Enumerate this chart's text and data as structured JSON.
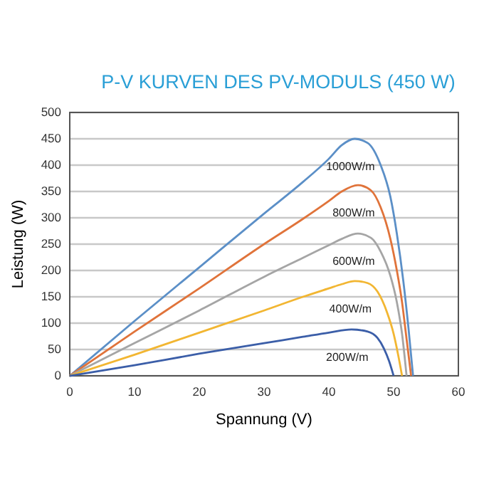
{
  "chart_data": {
    "type": "line",
    "title": "P-V KURVEN DES PV-MODULS (450 W)",
    "xlabel": "Spannung (V)",
    "ylabel": "Leistung (W)",
    "xlim": [
      0,
      60
    ],
    "xticks": [
      0,
      10,
      20,
      30,
      40,
      50,
      60
    ],
    "ylim": [
      0,
      500
    ],
    "yticks": [
      0,
      50,
      100,
      150,
      200,
      250,
      300,
      350,
      400,
      450,
      500
    ],
    "grid": "y",
    "legend": false,
    "marker": "none",
    "line_style": "solid",
    "series": [
      {
        "name": "1000W/m",
        "color": "#5b8fc7",
        "x": [
          0,
          10,
          20,
          30,
          36,
          40,
          42,
          44,
          46,
          48,
          49.5,
          50.5,
          51.5,
          52.3,
          53
        ],
        "values": [
          0,
          104,
          206,
          308,
          368,
          412,
          438,
          450,
          442,
          400,
          340,
          270,
          180,
          90,
          0
        ]
      },
      {
        "name": "800W/m",
        "color": "#e0733a",
        "x": [
          0,
          10,
          20,
          30,
          36,
          40,
          42,
          44.5,
          46.5,
          48,
          49.5,
          50.5,
          51.3,
          52,
          52.7
        ],
        "values": [
          0,
          84,
          166,
          250,
          298,
          332,
          350,
          362,
          352,
          320,
          260,
          200,
          140,
          70,
          0
        ]
      },
      {
        "name": "600W/m",
        "color": "#a5a5a5",
        "x": [
          0,
          10,
          20,
          30,
          36,
          40,
          42,
          44.5,
          46.5,
          48,
          49.5,
          50.5,
          51.3,
          52
        ],
        "values": [
          0,
          62,
          124,
          188,
          224,
          248,
          260,
          270,
          262,
          236,
          190,
          140,
          80,
          0
        ]
      },
      {
        "name": "400W/m",
        "color": "#f2b632",
        "x": [
          0,
          10,
          20,
          30,
          36,
          40,
          42,
          44,
          46,
          47.5,
          49,
          50,
          50.7,
          51.3
        ],
        "values": [
          0,
          40,
          82,
          124,
          150,
          166,
          174,
          180,
          176,
          160,
          120,
          80,
          40,
          0
        ]
      },
      {
        "name": "200W/m",
        "color": "#3b5ea8",
        "x": [
          0,
          10,
          20,
          30,
          36,
          40,
          43.5,
          46,
          47.5,
          48.5,
          49.3,
          50
        ],
        "values": [
          0,
          20,
          42,
          62,
          74,
          82,
          88,
          84,
          72,
          52,
          28,
          0
        ]
      }
    ]
  }
}
